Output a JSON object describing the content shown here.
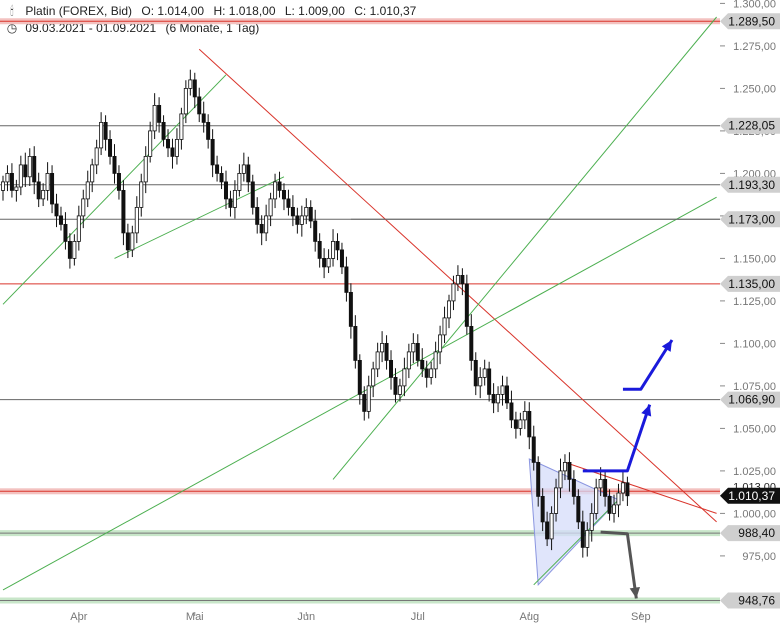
{
  "header": {
    "title": "Platin (FOREX, Bid)",
    "open": "O: 1.014,00",
    "high": "H: 1.018,00",
    "low": "L: 1.009,00",
    "close": "C: 1.010,37",
    "range": "09.03.2021 - 01.09.2021",
    "period": "(6 Monate, 1 Tag)",
    "chart_icon": "candlestick-icon",
    "clock_icon": "clock-icon"
  },
  "colors": {
    "up_candle": "#ffffff",
    "down_candle": "#111111",
    "red_line": "#d9342b",
    "green_line": "#4caf50",
    "gray_line": "#666666",
    "blue_arrow": "#1a1adb",
    "gray_arrow": "#555555",
    "triangle_fill": "#d5dcfa",
    "current_price_bg": "#111111"
  },
  "chart_data": {
    "type": "candlestick",
    "x_tick_labels": [
      "Apr",
      "Mai",
      "Jun",
      "Jul",
      "Aug",
      "Sep"
    ],
    "x_tick_index": [
      17,
      43,
      68,
      93,
      118,
      143
    ],
    "y_tick_labels": [
      "1.300,00",
      "1.275,00",
      "1.250,00",
      "1.225,00",
      "1.200,00",
      "1.175,00",
      "1.150,00",
      "1.125,00",
      "1.100,00",
      "1.075,00",
      "1.050,00",
      "1.025,00",
      "1.000,00",
      "975,00"
    ],
    "y_tick_values": [
      1300,
      1275,
      1250,
      1225,
      1200,
      1175,
      1150,
      1125,
      1100,
      1075,
      1050,
      1025,
      1000,
      975
    ],
    "ylim": [
      942,
      1302
    ],
    "close": [
      1195,
      1200,
      1190,
      1192,
      1205,
      1198,
      1210,
      1195,
      1185,
      1190,
      1200,
      1182,
      1175,
      1170,
      1160,
      1150,
      1160,
      1175,
      1185,
      1195,
      1205,
      1215,
      1230,
      1220,
      1210,
      1200,
      1190,
      1165,
      1155,
      1165,
      1180,
      1195,
      1210,
      1225,
      1240,
      1230,
      1220,
      1215,
      1210,
      1220,
      1235,
      1250,
      1255,
      1245,
      1235,
      1230,
      1220,
      1205,
      1200,
      1195,
      1185,
      1180,
      1190,
      1200,
      1205,
      1195,
      1180,
      1170,
      1165,
      1175,
      1185,
      1195,
      1190,
      1185,
      1180,
      1175,
      1170,
      1175,
      1180,
      1172,
      1160,
      1150,
      1145,
      1150,
      1160,
      1155,
      1145,
      1130,
      1110,
      1090,
      1070,
      1060,
      1075,
      1085,
      1095,
      1100,
      1090,
      1080,
      1070,
      1075,
      1085,
      1095,
      1100,
      1090,
      1085,
      1080,
      1085,
      1095,
      1105,
      1115,
      1125,
      1135,
      1140,
      1135,
      1110,
      1090,
      1075,
      1080,
      1085,
      1070,
      1065,
      1070,
      1075,
      1065,
      1055,
      1050,
      1055,
      1060,
      1045,
      1030,
      1010,
      995,
      985,
      1000,
      1015,
      1025,
      1030,
      1020,
      1010,
      995,
      980,
      990,
      1000,
      1015,
      1020,
      1010,
      1000,
      1005,
      1012,
      1018,
      1010.37
    ],
    "ohlc_note": "",
    "horizontal_levels": [
      {
        "value": 1289.5,
        "label": "1.289,50",
        "style": "red-band"
      },
      {
        "value": 1228.05,
        "label": "1.228,05",
        "style": "gray"
      },
      {
        "value": 1193.3,
        "label": "1.193,30",
        "style": "gray"
      },
      {
        "value": 1173.0,
        "label": "1.173,00",
        "style": "gray"
      },
      {
        "value": 1135.0,
        "label": "1.135,00",
        "style": "red"
      },
      {
        "value": 1066.9,
        "label": "1.066,90",
        "style": "gray"
      },
      {
        "value": 1010.37,
        "label": "1.010,37",
        "style": "current"
      },
      {
        "value": 988.4,
        "label": "988,40",
        "style": "green-band"
      },
      {
        "value": 948.76,
        "label": "948,76",
        "style": "green-band"
      }
    ],
    "overlapped_label": "1.013,00",
    "red_band_level": 1013,
    "trendlines": [
      {
        "color": "red",
        "from": [
          44,
          1273
        ],
        "to": [
          160,
          995
        ]
      },
      {
        "color": "red",
        "from": [
          126,
          1030
        ],
        "to": [
          160,
          1000
        ]
      },
      {
        "color": "green",
        "from": [
          0,
          1123
        ],
        "to": [
          50,
          1258
        ]
      },
      {
        "color": "green",
        "from": [
          25,
          1150
        ],
        "to": [
          63,
          1198
        ]
      },
      {
        "color": "green",
        "from": [
          0,
          955
        ],
        "to": [
          160,
          1186
        ]
      },
      {
        "color": "green",
        "from": [
          74,
          1020
        ],
        "to": [
          160,
          1292
        ]
      },
      {
        "color": "green",
        "from": [
          119,
          958
        ],
        "to": [
          138,
          1008
        ]
      }
    ],
    "triangle": {
      "points": [
        [
          118,
          1032
        ],
        [
          138,
          1008
        ],
        [
          120,
          958
        ]
      ]
    },
    "arrows": [
      {
        "color": "blue",
        "path": [
          [
            130,
            1025
          ],
          [
            140,
            1025
          ],
          [
            145,
            1064
          ]
        ]
      },
      {
        "color": "blue",
        "path": [
          [
            139,
            1073
          ],
          [
            143,
            1073
          ],
          [
            150,
            1102
          ]
        ]
      },
      {
        "color": "gray",
        "path": [
          [
            134,
            989
          ],
          [
            140,
            988
          ],
          [
            142,
            950
          ]
        ]
      }
    ]
  }
}
